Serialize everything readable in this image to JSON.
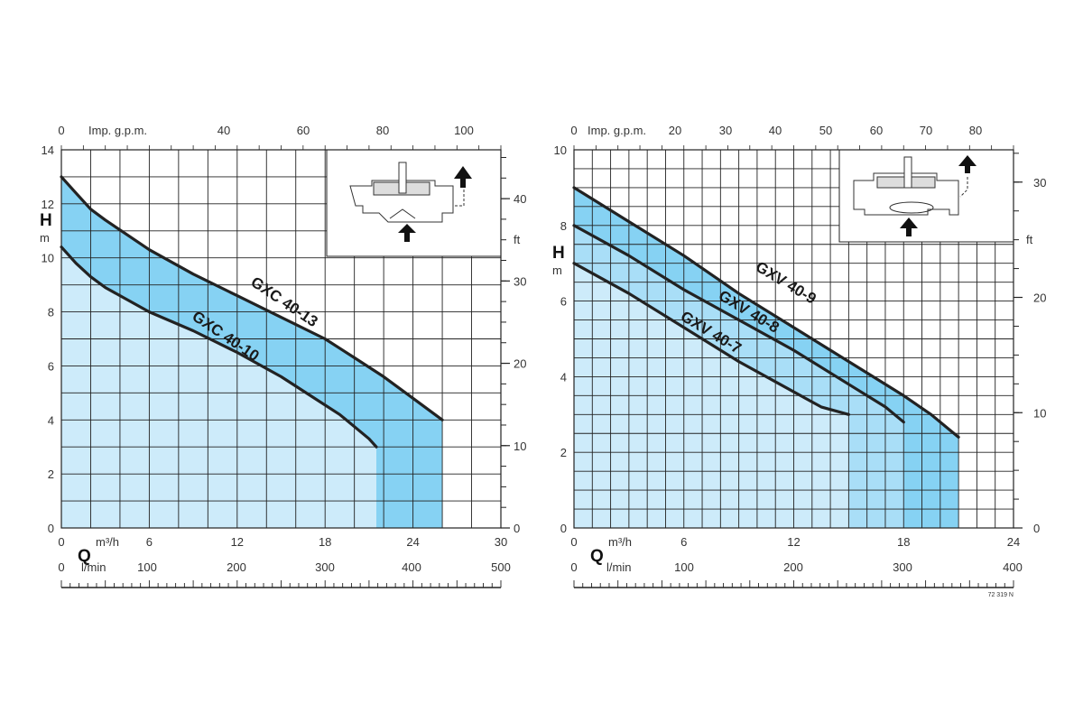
{
  "chart_data": [
    {
      "type": "area",
      "xaxis_bottom": {
        "unit": "m³/h",
        "ticks": [
          "0",
          "6",
          "12",
          "18",
          "24",
          "30"
        ],
        "range": [
          0,
          30
        ]
      },
      "xaxis_flow": {
        "label": "Q",
        "unit": "l/min",
        "ticks": [
          "0",
          "100",
          "200",
          "300",
          "400",
          "500"
        ]
      },
      "xaxis_top": {
        "unit": "Imp. g.p.m.",
        "ticks": [
          "0",
          "40",
          "60",
          "80",
          "100"
        ]
      },
      "yaxis_left": {
        "label": "H",
        "unit": "m",
        "ticks": [
          "0",
          "2",
          "4",
          "6",
          "8",
          "10",
          "12",
          "14"
        ],
        "range": [
          0,
          14
        ]
      },
      "yaxis_right": {
        "unit": "ft",
        "ticks": [
          "0",
          "10",
          "20",
          "30",
          "40"
        ]
      },
      "series": [
        {
          "name": "GXC 40-13",
          "x": [
            0,
            1,
            2,
            3,
            6,
            9,
            12,
            15,
            18,
            20,
            22,
            24,
            26
          ],
          "y": [
            13.0,
            12.4,
            11.8,
            11.4,
            10.3,
            9.4,
            8.6,
            7.8,
            7.0,
            6.3,
            5.6,
            4.8,
            4.0
          ]
        },
        {
          "name": "GXC 40-10",
          "x": [
            0,
            1,
            2,
            3,
            6,
            9,
            12,
            15,
            17,
            19,
            21,
            21.5
          ],
          "y": [
            10.4,
            9.8,
            9.3,
            8.9,
            8.0,
            7.3,
            6.5,
            5.6,
            4.9,
            4.2,
            3.3,
            3.0
          ]
        }
      ]
    },
    {
      "type": "area",
      "xaxis_bottom": {
        "unit": "m³/h",
        "ticks": [
          "0",
          "6",
          "12",
          "18",
          "24"
        ],
        "range": [
          0,
          24
        ]
      },
      "xaxis_flow": {
        "label": "Q",
        "unit": "l/min",
        "ticks": [
          "0",
          "100",
          "200",
          "300",
          "400"
        ]
      },
      "xaxis_top": {
        "unit": "Imp. g.p.m.",
        "ticks": [
          "0",
          "20",
          "30",
          "40",
          "50",
          "60",
          "70",
          "80"
        ]
      },
      "yaxis_left": {
        "label": "H",
        "unit": "m",
        "ticks": [
          "0",
          "2",
          "4",
          "6",
          "8",
          "10"
        ],
        "range": [
          0,
          10
        ]
      },
      "yaxis_right": {
        "unit": "ft",
        "ticks": [
          "0",
          "10",
          "20",
          "30"
        ]
      },
      "series": [
        {
          "name": "GXV 40-9",
          "x": [
            0,
            3,
            6,
            9,
            12,
            15,
            18,
            19.5,
            20.5,
            21
          ],
          "y": [
            9.0,
            8.1,
            7.2,
            6.2,
            5.3,
            4.4,
            3.5,
            3.0,
            2.6,
            2.4
          ]
        },
        {
          "name": "GXV 40-8",
          "x": [
            0,
            3,
            6,
            9,
            12,
            15,
            17,
            18
          ],
          "y": [
            8.0,
            7.2,
            6.3,
            5.5,
            4.7,
            3.8,
            3.2,
            2.8
          ]
        },
        {
          "name": "GXV 40-7",
          "x": [
            0,
            3,
            6,
            9,
            12,
            13.5,
            15
          ],
          "y": [
            7.0,
            6.2,
            5.3,
            4.4,
            3.6,
            3.2,
            3.0
          ]
        }
      ],
      "reference": "72 319 N"
    }
  ],
  "colors": {
    "light": "#cdebfa",
    "medium": "#a9def7",
    "dark": "#86d2f3",
    "grid": "#222222",
    "curve": "#222222"
  },
  "icons": [
    "pump-inlet-bottom-icon",
    "pump-inlet-side-icon",
    "flow-direction-arrow-icon"
  ]
}
